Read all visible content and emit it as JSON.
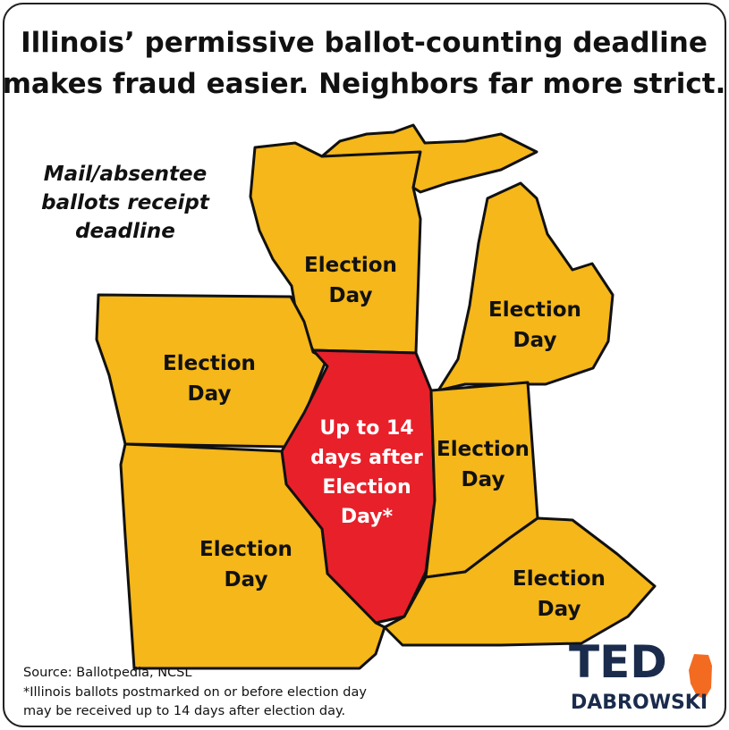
{
  "header": {
    "title_lines": [
      "Illinois’ permissive ballot-counting deadline",
      "makes fraud easier. Neighbors far more strict."
    ]
  },
  "map_note": {
    "lines": [
      "Mail/absentee",
      "ballots receipt",
      "deadline"
    ]
  },
  "states": [
    {
      "lines": [
        "Election",
        "Day"
      ]
    },
    {
      "lines": [
        "Election",
        "Day"
      ]
    },
    {
      "lines": [
        "Election",
        "Day"
      ]
    },
    {
      "lines": [
        "Up to 14",
        "days after",
        "Election",
        "Day*"
      ]
    },
    {
      "lines": [
        "Election",
        "Day"
      ]
    },
    {
      "lines": [
        "Election",
        "Day"
      ]
    },
    {
      "lines": [
        "Election",
        "Day"
      ]
    }
  ],
  "footer": {
    "source": "Source: Ballotpedia, NCSL",
    "note_lines": [
      "*Illinois ballots postmarked on or before election day",
      "may be received up to 14 days after election day."
    ]
  },
  "logo": {
    "line1": "TED",
    "line2": "DABROWSKI"
  }
}
